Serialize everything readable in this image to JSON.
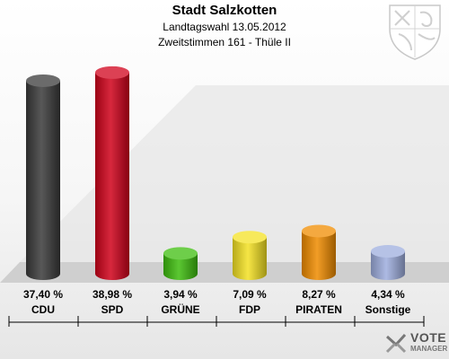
{
  "header": {
    "title": "Stadt Salzkotten",
    "subtitle_1": "Landtagswahl 13.05.2012",
    "subtitle_2": "Zweitstimmen 161 - Thüle II"
  },
  "logo": {
    "line1": "VOTE",
    "line2": "MANAGER"
  },
  "crest_icon": "coat-of-arms-icon",
  "chart_data": {
    "type": "bar",
    "categories": [
      "CDU",
      "SPD",
      "GRÜNE",
      "FDP",
      "PIRATEN",
      "Sonstige"
    ],
    "values": [
      37.4,
      38.98,
      3.94,
      7.09,
      8.27,
      4.34
    ],
    "value_labels": [
      "37,40 %",
      "38,98 %",
      "3,94 %",
      "7,09 %",
      "8,27 %",
      "4,34 %"
    ],
    "colors": [
      "#3a3a3a",
      "#d0021b",
      "#3ebd0e",
      "#f4e224",
      "#f08c00",
      "#9eaede"
    ],
    "ylim": [
      0,
      40
    ],
    "title": "",
    "xlabel": "",
    "ylabel": ""
  }
}
